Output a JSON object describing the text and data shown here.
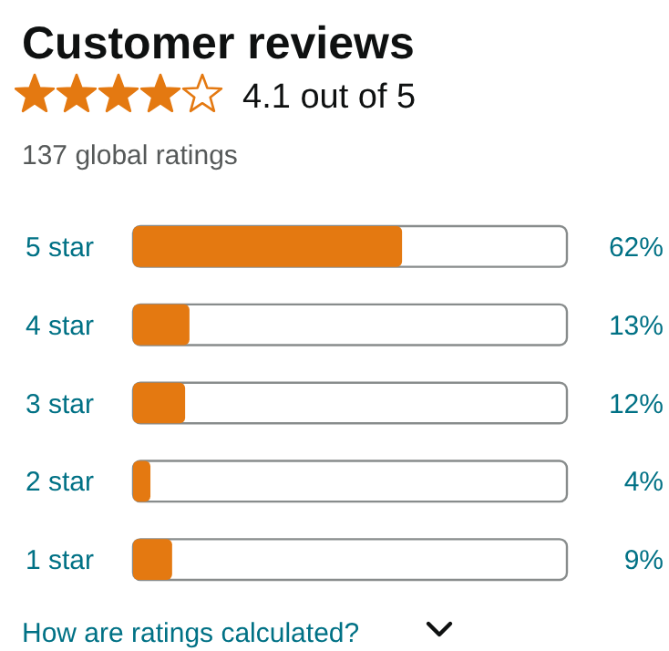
{
  "chart_data": {
    "type": "bar",
    "orientation": "horizontal",
    "title": "Customer reviews",
    "subtitle": "4.1 out of 5",
    "annotations": [
      "137 global ratings",
      "How are ratings calculated?"
    ],
    "categories": [
      "5 star",
      "4 star",
      "3 star",
      "2 star",
      "1 star"
    ],
    "values": [
      62,
      13,
      12,
      4,
      9
    ],
    "value_labels": [
      "62%",
      "13%",
      "12%",
      "4%",
      "9%"
    ],
    "color": "#e47911",
    "xlim": [
      0,
      100
    ]
  }
}
